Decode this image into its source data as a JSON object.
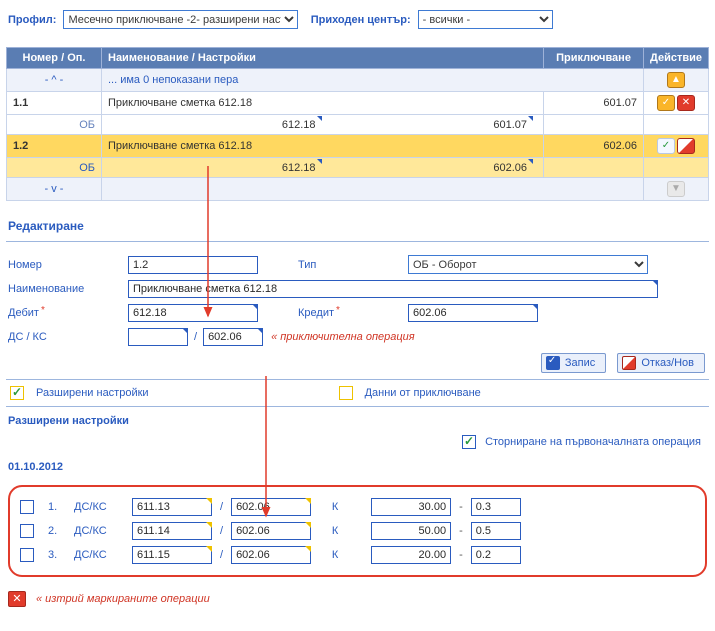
{
  "filters": {
    "profile_label": "Профил:",
    "profile_value": "Месечно приключване -2- разширени наст",
    "center_label": "Приходен център:",
    "center_value": "- всички -"
  },
  "grid": {
    "headers": {
      "number": "Номер / Оп.",
      "name": "Наименование / Настройки",
      "closing": "Приключване",
      "action": "Действие"
    },
    "top_control": {
      "marker": "- ^ -",
      "text": "... има 0 непоказани пера"
    },
    "rows": [
      {
        "num": "1.1",
        "name": "Приключване сметка 612.18",
        "closing": "601.07",
        "sub": {
          "op": "ОБ",
          "val_mid": "612.18",
          "val_right": "601.07"
        }
      },
      {
        "num": "1.2",
        "name": "Приключване сметка 612.18",
        "closing": "602.06",
        "sub": {
          "op": "ОБ",
          "val_mid": "612.18",
          "val_right": "602.06"
        }
      }
    ],
    "bottom_control": {
      "marker": "- v -"
    }
  },
  "edit": {
    "title": "Редактиране",
    "number_label": "Номер",
    "number_value": "1.2",
    "type_label": "Тип",
    "type_value": "ОБ - Оборот",
    "name_label": "Наименование",
    "name_value": "Приключване сметка 612.18",
    "debit_label": "Дебит",
    "debit_value": "612.18",
    "credit_label": "Кредит",
    "credit_value": "602.06",
    "dsks_label": "ДС / КС",
    "dsks_left": "",
    "dsks_right": "602.06",
    "closing_note": "« приключителна операция",
    "save_btn": "Запис",
    "cancel_btn": "Отказ/Нов"
  },
  "adv": {
    "chk_advanced": "Разширени настройки",
    "chk_closing_data": "Данни от приключване",
    "section_title": "Разширени настройки",
    "reverse_label": "Сторниране на първоначалната операция"
  },
  "ops": {
    "date": "01.10.2012",
    "rows": [
      {
        "n": "1.",
        "dsks": "ДС/КС",
        "a1": "611.13",
        "a2": "602.06",
        "k": "К",
        "amt": "30.00",
        "coef": "0.3"
      },
      {
        "n": "2.",
        "dsks": "ДС/КС",
        "a1": "611.14",
        "a2": "602.06",
        "k": "К",
        "amt": "50.00",
        "coef": "0.5"
      },
      {
        "n": "3.",
        "dsks": "ДС/КС",
        "a1": "611.15",
        "a2": "602.06",
        "k": "К",
        "amt": "20.00",
        "coef": "0.2"
      }
    ],
    "delete_label": "« изтрий маркираните операции"
  }
}
